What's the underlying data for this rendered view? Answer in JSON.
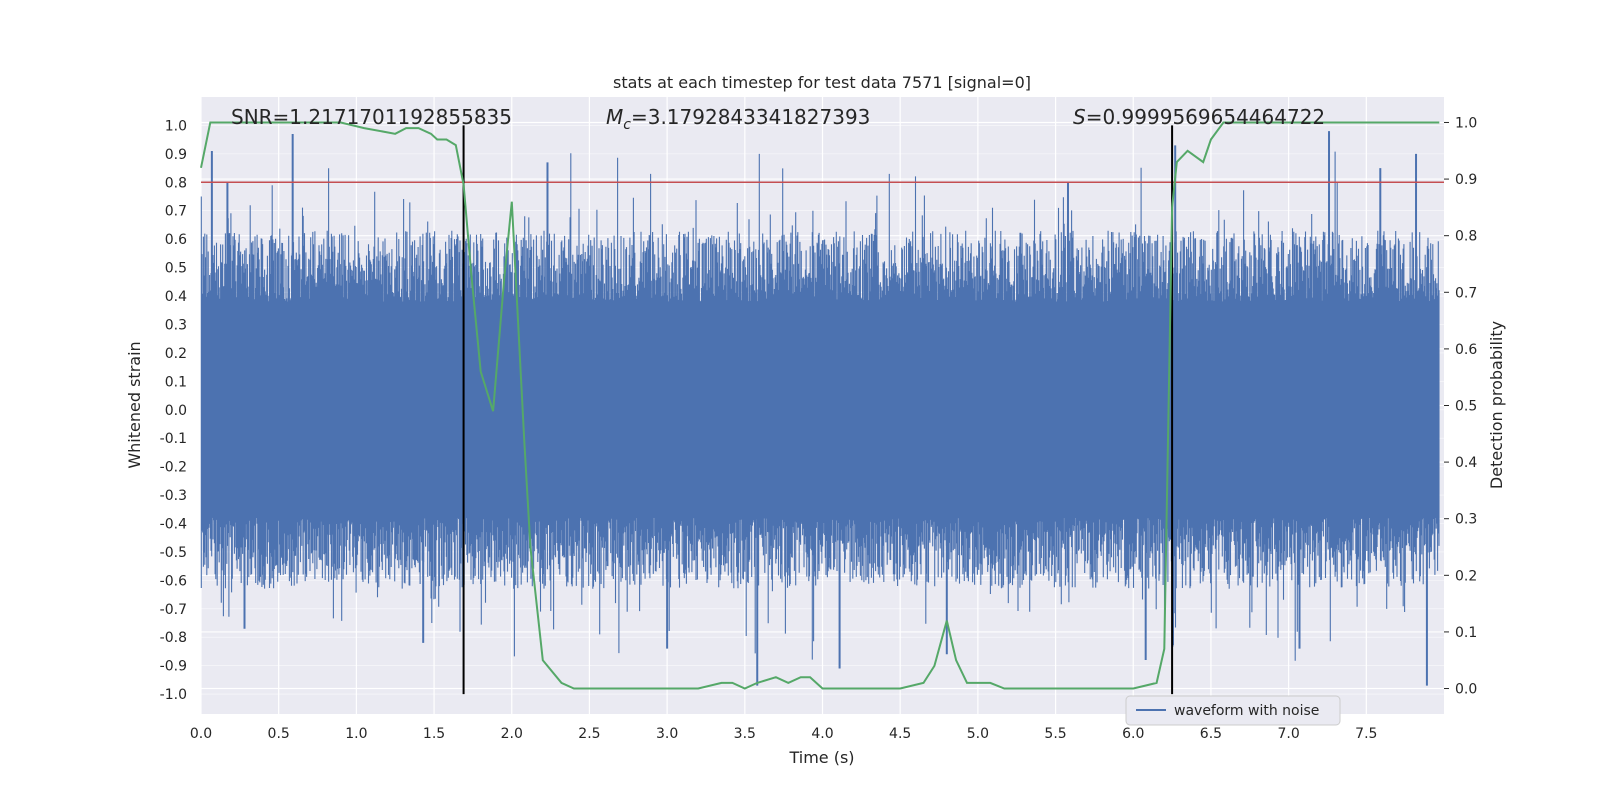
{
  "chart_data": {
    "type": "line",
    "title": "stats at each timestep for test data 7571 [signal=0]",
    "xlabel": "Time (s)",
    "ylabel": "Whitened strain",
    "y2label": "Detection probability",
    "xlim": [
      0.0,
      8.0
    ],
    "ylim": [
      -1.07,
      1.1
    ],
    "y2lim": [
      -0.045,
      1.045
    ],
    "x_ticks": [
      "0.0",
      "0.5",
      "1.0",
      "1.5",
      "2.0",
      "2.5",
      "3.0",
      "3.5",
      "4.0",
      "4.5",
      "5.0",
      "5.5",
      "6.0",
      "6.5",
      "7.0",
      "7.5"
    ],
    "y_ticks": [
      "1.0",
      "0.9",
      "0.8",
      "0.7",
      "0.6",
      "0.5",
      "0.4",
      "0.3",
      "0.2",
      "0.1",
      "0.0",
      "-0.1",
      "-0.2",
      "-0.3",
      "-0.4",
      "-0.5",
      "-0.6",
      "-0.7",
      "-0.8",
      "-0.9",
      "-1.0"
    ],
    "y2_ticks": [
      "1.0",
      "0.9",
      "0.8",
      "0.7",
      "0.6",
      "0.5",
      "0.4",
      "0.3",
      "0.2",
      "0.1",
      "0.0"
    ],
    "annotations": {
      "snr": "SNR=1.2171701192855835",
      "mc_symbol": "M",
      "mc_sub": "c",
      "mc_value": "=3.1792843341827393",
      "s_symbol": "S",
      "s_value": "=0.9999569654464722"
    },
    "legend": {
      "label": "waveform with noise",
      "loc": "lower right"
    },
    "threshold_line": {
      "y": 0.8,
      "color": "#c44e52"
    },
    "vertical_lines": [
      1.69,
      6.25
    ],
    "colors": {
      "waveform": "#4c72b0",
      "probability": "#55a868",
      "threshold": "#c44e52",
      "vline": "#000000",
      "axes_bg": "#eaeaf2",
      "grid": "#ffffff"
    },
    "waveform": {
      "name": "waveform with noise",
      "description_samples": 16384,
      "core_amplitude": 0.38,
      "peaks": [
        {
          "x": 0.07,
          "y": 0.91
        },
        {
          "x": 0.17,
          "y": 0.8
        },
        {
          "x": 0.59,
          "y": 0.97
        },
        {
          "x": 2.23,
          "y": 0.87
        },
        {
          "x": 1.43,
          "y": -0.82
        },
        {
          "x": 3.58,
          "y": -0.97
        },
        {
          "x": 4.11,
          "y": -0.91
        },
        {
          "x": 6.08,
          "y": -0.88
        },
        {
          "x": 7.26,
          "y": 0.98
        },
        {
          "x": 7.89,
          "y": -0.97
        },
        {
          "x": 6.27,
          "y": 0.93
        },
        {
          "x": 7.82,
          "y": 0.9
        },
        {
          "x": 5.58,
          "y": 0.8
        },
        {
          "x": 7.59,
          "y": 0.85
        },
        {
          "x": 0.28,
          "y": -0.77
        },
        {
          "x": 3.0,
          "y": -0.84
        },
        {
          "x": 4.8,
          "y": -0.86
        },
        {
          "x": 7.07,
          "y": -0.84
        }
      ]
    },
    "probability": {
      "name": "detection probability",
      "x": [
        0.0,
        0.06,
        0.5,
        0.9,
        1.05,
        1.25,
        1.32,
        1.4,
        1.48,
        1.52,
        1.58,
        1.64,
        1.69,
        1.74,
        1.8,
        1.88,
        1.95,
        2.0,
        2.04,
        2.08,
        2.12,
        2.2,
        2.32,
        2.4,
        2.5,
        2.62,
        2.75,
        3.0,
        3.2,
        3.35,
        3.42,
        3.5,
        3.58,
        3.7,
        3.78,
        3.86,
        3.92,
        4.0,
        4.08,
        4.2,
        4.5,
        4.65,
        4.72,
        4.8,
        4.86,
        4.93,
        5.0,
        5.08,
        5.17,
        5.24,
        5.3,
        5.6,
        6.0,
        6.15,
        6.2,
        6.25,
        6.28,
        6.35,
        6.45,
        6.5,
        6.58,
        6.7,
        6.85,
        7.0,
        7.5,
        7.97
      ],
      "y": [
        0.92,
        1.0,
        1.0,
        1.0,
        0.99,
        0.98,
        0.99,
        0.99,
        0.98,
        0.97,
        0.97,
        0.96,
        0.89,
        0.73,
        0.56,
        0.49,
        0.72,
        0.86,
        0.65,
        0.44,
        0.25,
        0.05,
        0.01,
        0.0,
        0.0,
        0.0,
        0.0,
        0.0,
        0.0,
        0.01,
        0.01,
        0.0,
        0.01,
        0.02,
        0.01,
        0.02,
        0.02,
        0.0,
        0.0,
        0.0,
        0.0,
        0.01,
        0.04,
        0.12,
        0.05,
        0.01,
        0.01,
        0.01,
        0.0,
        0.0,
        0.0,
        0.0,
        0.0,
        0.01,
        0.07,
        0.85,
        0.93,
        0.95,
        0.93,
        0.97,
        1.0,
        1.0,
        1.0,
        1.0,
        1.0,
        1.0
      ]
    }
  }
}
